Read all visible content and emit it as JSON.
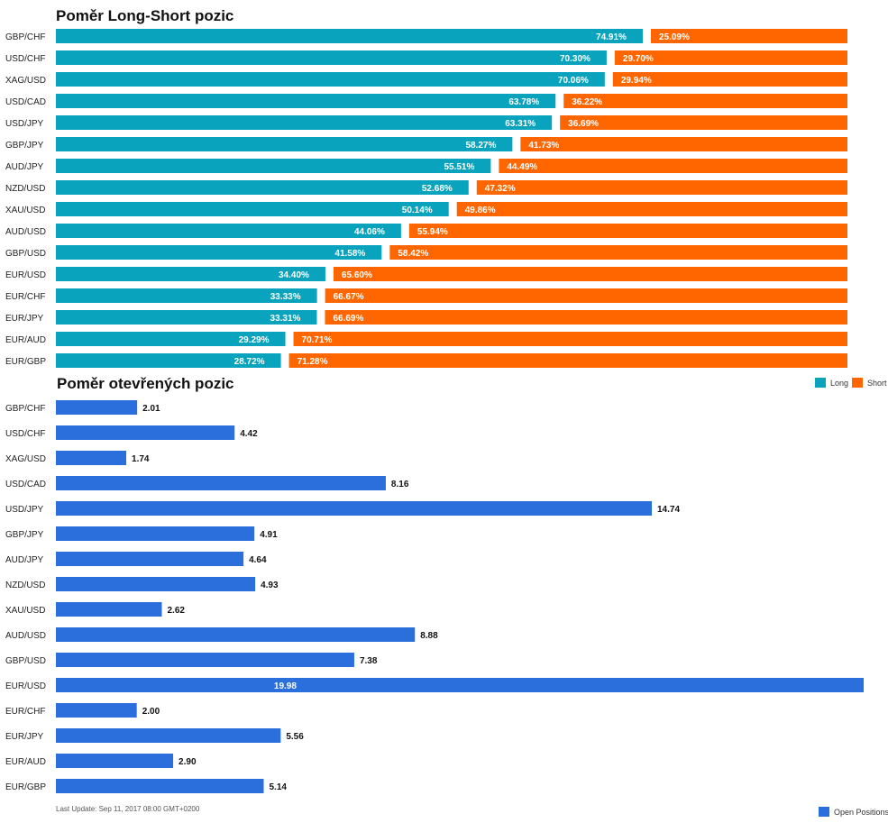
{
  "colors": {
    "long": "#0aa3bd",
    "short": "#ff6600",
    "open": "#2a6fdc"
  },
  "chart_data": [
    {
      "type": "bar",
      "orientation": "horizontal-stacked",
      "title": "Poměr Long-Short pozic",
      "categories": [
        "GBP/CHF",
        "USD/CHF",
        "XAG/USD",
        "USD/CAD",
        "USD/JPY",
        "GBP/JPY",
        "AUD/JPY",
        "NZD/USD",
        "XAU/USD",
        "AUD/USD",
        "GBP/USD",
        "EUR/USD",
        "EUR/CHF",
        "EUR/JPY",
        "EUR/AUD",
        "EUR/GBP"
      ],
      "series": [
        {
          "name": "Long",
          "values": [
            74.91,
            70.3,
            70.06,
            63.78,
            63.31,
            58.27,
            55.51,
            52.68,
            50.14,
            44.06,
            41.58,
            34.4,
            33.33,
            33.31,
            29.29,
            28.72
          ],
          "labels": [
            "74.91%",
            "70.30%",
            "70.06%",
            "63.78%",
            "63.31%",
            "58.27%",
            "55.51%",
            "52.68%",
            "50.14%",
            "44.06%",
            "41.58%",
            "34.40%",
            "33.33%",
            "33.31%",
            "29.29%",
            "28.72%"
          ]
        },
        {
          "name": "Short",
          "values": [
            25.09,
            29.7,
            29.94,
            36.22,
            36.69,
            41.73,
            44.49,
            47.32,
            49.86,
            55.94,
            58.42,
            65.6,
            66.67,
            66.69,
            70.71,
            71.28
          ],
          "labels": [
            "25.09%",
            "29.70%",
            "29.94%",
            "36.22%",
            "36.69%",
            "41.73%",
            "44.49%",
            "47.32%",
            "49.86%",
            "55.94%",
            "58.42%",
            "65.60%",
            "66.67%",
            "66.69%",
            "70.71%",
            "71.28%"
          ]
        }
      ],
      "xlim": [
        0,
        100
      ],
      "legend": "bottom-right"
    },
    {
      "type": "bar",
      "orientation": "horizontal",
      "title": "Poměr otevřených pozic",
      "categories": [
        "GBP/CHF",
        "USD/CHF",
        "XAG/USD",
        "USD/CAD",
        "USD/JPY",
        "GBP/JPY",
        "AUD/JPY",
        "NZD/USD",
        "XAU/USD",
        "AUD/USD",
        "GBP/USD",
        "EUR/USD",
        "EUR/CHF",
        "EUR/JPY",
        "EUR/AUD",
        "EUR/GBP"
      ],
      "series": [
        {
          "name": "Open Positions",
          "values": [
            2.01,
            4.42,
            1.74,
            8.16,
            14.74,
            4.91,
            4.64,
            4.93,
            2.62,
            8.88,
            7.38,
            19.98,
            2.0,
            5.56,
            2.9,
            5.14
          ],
          "labels": [
            "2.01",
            "4.42",
            "1.74",
            "8.16",
            "14.74",
            "4.91",
            "4.64",
            "4.93",
            "2.62",
            "8.88",
            "7.38",
            "19.98",
            "2.00",
            "5.56",
            "2.90",
            "5.14"
          ]
        }
      ],
      "xlim": [
        0,
        19.98
      ],
      "legend": "bottom-right"
    }
  ],
  "legend": {
    "long": "Long",
    "short": "Short",
    "open": "Open Positions"
  },
  "footer": {
    "last_update": "Last Update: Sep 11, 2017 08:00 GMT+0200"
  }
}
